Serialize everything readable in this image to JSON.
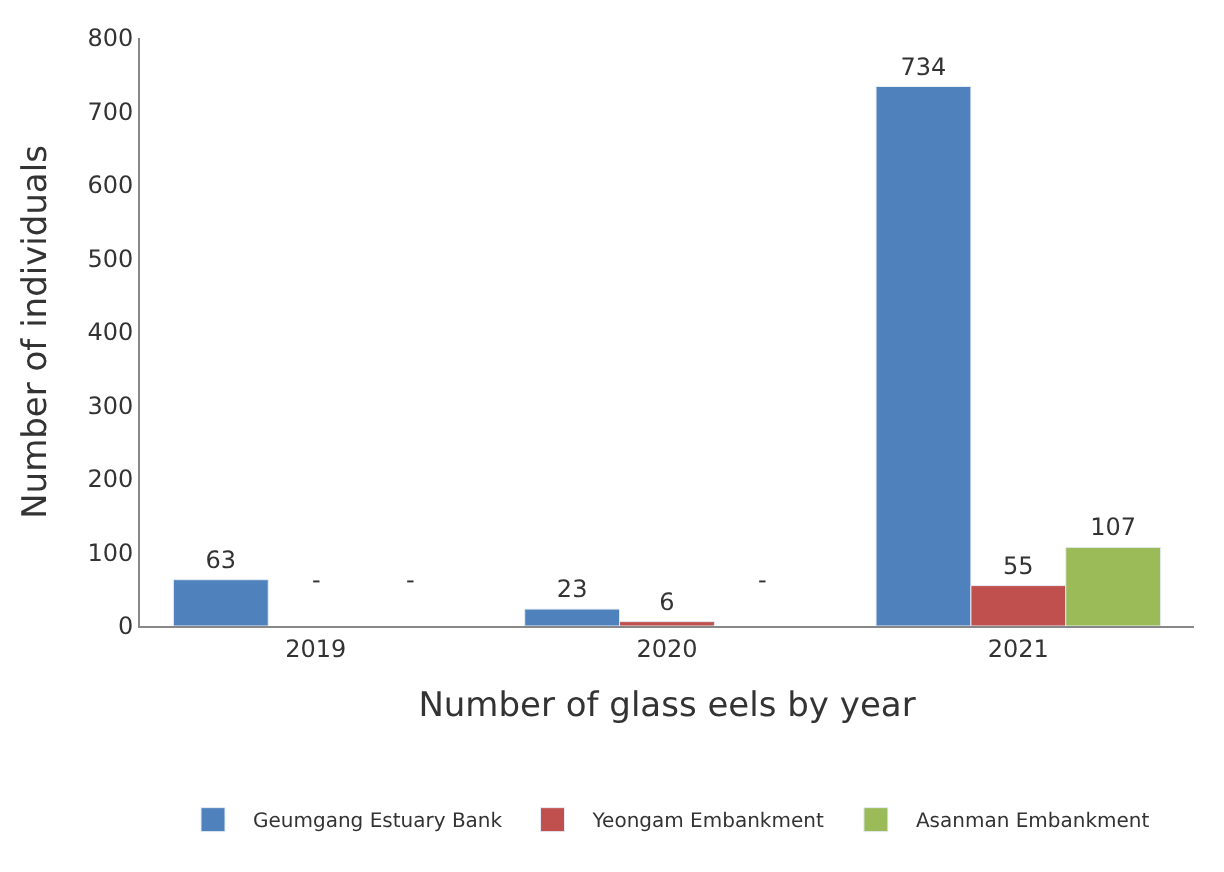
{
  "chart_data": {
    "type": "bar",
    "xlabel": "Number of glass eels by year",
    "ylabel": "Number of individuals",
    "categories": [
      "2019",
      "2020",
      "2021"
    ],
    "series": [
      {
        "name": "Geumgang Estuary Bank",
        "color": "#4f81bd",
        "values": [
          63,
          23,
          734
        ],
        "value_labels": [
          "63",
          "23",
          "734"
        ]
      },
      {
        "name": "Yeongam Embankment",
        "color": "#c0504d",
        "values": [
          null,
          6,
          55
        ],
        "value_labels": [
          "-",
          "6",
          "55"
        ]
      },
      {
        "name": "Asanman Embankment",
        "color": "#9bbb59",
        "values": [
          null,
          null,
          107
        ],
        "value_labels": [
          "-",
          "-",
          "107"
        ]
      }
    ],
    "ylim": [
      0,
      800
    ],
    "yticks": [
      0,
      100,
      200,
      300,
      400,
      500,
      600,
      700,
      800
    ],
    "legend": "bottom"
  }
}
